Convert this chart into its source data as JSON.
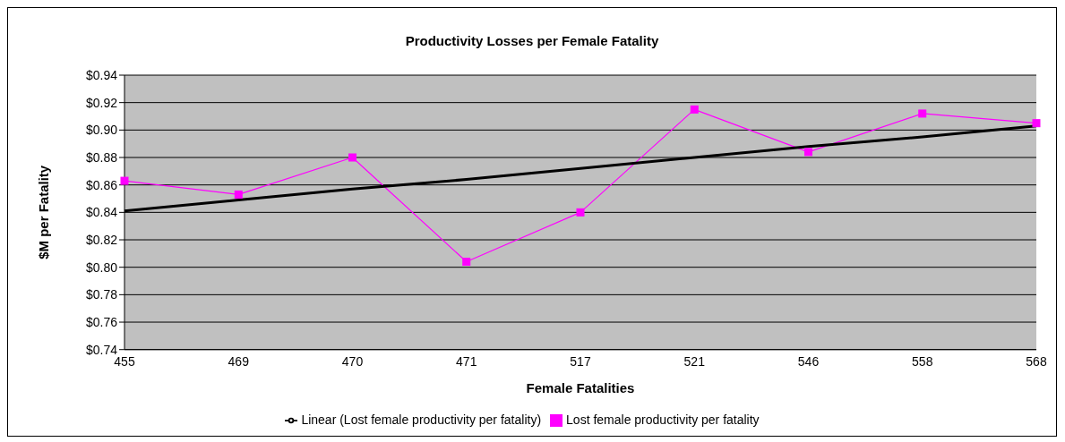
{
  "chart_data": {
    "type": "line",
    "title": "Productivity Losses per Female Fatality",
    "xlabel": "Female Fatalities",
    "ylabel": "$M per Fatality",
    "categories": [
      "455",
      "469",
      "470",
      "471",
      "517",
      "521",
      "546",
      "558",
      "568"
    ],
    "series": [
      {
        "name": "Lost female productivity per fatality",
        "color": "#ff00ff",
        "marker": "square",
        "values": [
          0.863,
          0.853,
          0.88,
          0.804,
          0.84,
          0.915,
          0.884,
          0.912,
          0.905
        ]
      },
      {
        "name": "Linear (Lost female productivity per fatality)",
        "color": "#000000",
        "marker": "none",
        "values": [
          0.841,
          0.849,
          0.857,
          0.864,
          0.872,
          0.88,
          0.888,
          0.895,
          0.903
        ]
      }
    ],
    "ylim": [
      0.74,
      0.94
    ],
    "yticks": [
      {
        "value": 0.74,
        "label": "$0.74"
      },
      {
        "value": 0.76,
        "label": "$0.76"
      },
      {
        "value": 0.78,
        "label": "$0.78"
      },
      {
        "value": 0.8,
        "label": "$0.80"
      },
      {
        "value": 0.82,
        "label": "$0.82"
      },
      {
        "value": 0.84,
        "label": "$0.84"
      },
      {
        "value": 0.86,
        "label": "$0.86"
      },
      {
        "value": 0.88,
        "label": "$0.88"
      },
      {
        "value": 0.9,
        "label": "$0.90"
      },
      {
        "value": 0.92,
        "label": "$0.92"
      },
      {
        "value": 0.94,
        "label": "$0.94"
      }
    ],
    "grid": "y",
    "legend": "bottom"
  }
}
